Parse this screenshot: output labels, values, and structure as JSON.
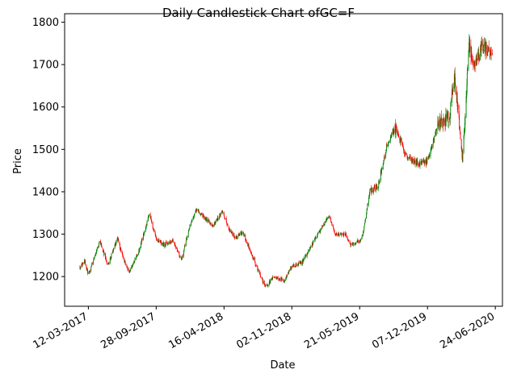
{
  "chart_data": {
    "type": "candlestick",
    "title": "Daily Candlestick Chart ofGC=F",
    "xlabel": "Date",
    "ylabel": "Price",
    "ylim": [
      1130,
      1820
    ],
    "xlim": [
      "2017-01-01",
      "2020-07-15"
    ],
    "yticks": [
      1200,
      1300,
      1400,
      1500,
      1600,
      1700,
      1800
    ],
    "xticks": [
      {
        "date": "2017-03-12",
        "label": "12-03-2017"
      },
      {
        "date": "2017-09-28",
        "label": "28-09-2017"
      },
      {
        "date": "2018-04-16",
        "label": "16-04-2018"
      },
      {
        "date": "2018-11-02",
        "label": "02-11-2018"
      },
      {
        "date": "2019-05-21",
        "label": "21-05-2019"
      },
      {
        "date": "2019-12-07",
        "label": "07-12-2019"
      },
      {
        "date": "2020-06-24",
        "label": "24-06-2020"
      }
    ],
    "colors": {
      "up": "#008000",
      "down": "#ff0000"
    },
    "grid": false,
    "date_range": [
      "2017-02-15",
      "2020-06-15"
    ],
    "price_path": [
      [
        "2017-02-15",
        1222
      ],
      [
        "2017-03-01",
        1238
      ],
      [
        "2017-03-12",
        1205
      ],
      [
        "2017-04-01",
        1250
      ],
      [
        "2017-04-15",
        1285
      ],
      [
        "2017-05-08",
        1225
      ],
      [
        "2017-06-06",
        1290
      ],
      [
        "2017-06-20",
        1250
      ],
      [
        "2017-07-10",
        1210
      ],
      [
        "2017-08-10",
        1265
      ],
      [
        "2017-09-08",
        1350
      ],
      [
        "2017-09-28",
        1288
      ],
      [
        "2017-10-20",
        1275
      ],
      [
        "2017-11-15",
        1285
      ],
      [
        "2017-12-12",
        1240
      ],
      [
        "2018-01-05",
        1320
      ],
      [
        "2018-01-25",
        1360
      ],
      [
        "2018-02-15",
        1340
      ],
      [
        "2018-03-15",
        1320
      ],
      [
        "2018-04-11",
        1355
      ],
      [
        "2018-05-01",
        1310
      ],
      [
        "2018-05-20",
        1290
      ],
      [
        "2018-06-10",
        1305
      ],
      [
        "2018-07-10",
        1245
      ],
      [
        "2018-08-16",
        1175
      ],
      [
        "2018-09-10",
        1200
      ],
      [
        "2018-10-10",
        1190
      ],
      [
        "2018-11-02",
        1225
      ],
      [
        "2018-12-01",
        1232
      ],
      [
        "2019-01-10",
        1290
      ],
      [
        "2019-02-20",
        1345
      ],
      [
        "2019-03-10",
        1300
      ],
      [
        "2019-04-10",
        1300
      ],
      [
        "2019-04-23",
        1275
      ],
      [
        "2019-05-21",
        1285
      ],
      [
        "2019-05-29",
        1295
      ],
      [
        "2019-06-20",
        1400
      ],
      [
        "2019-07-15",
        1415
      ],
      [
        "2019-08-10",
        1510
      ],
      [
        "2019-09-04",
        1555
      ],
      [
        "2019-10-01",
        1490
      ],
      [
        "2019-11-12",
        1465
      ],
      [
        "2019-12-07",
        1470
      ],
      [
        "2020-01-08",
        1560
      ],
      [
        "2020-02-10",
        1575
      ],
      [
        "2020-02-24",
        1680
      ],
      [
        "2020-03-19",
        1475
      ],
      [
        "2020-04-08",
        1750
      ],
      [
        "2020-04-21",
        1695
      ],
      [
        "2020-05-15",
        1740
      ],
      [
        "2020-06-15",
        1725
      ]
    ]
  }
}
